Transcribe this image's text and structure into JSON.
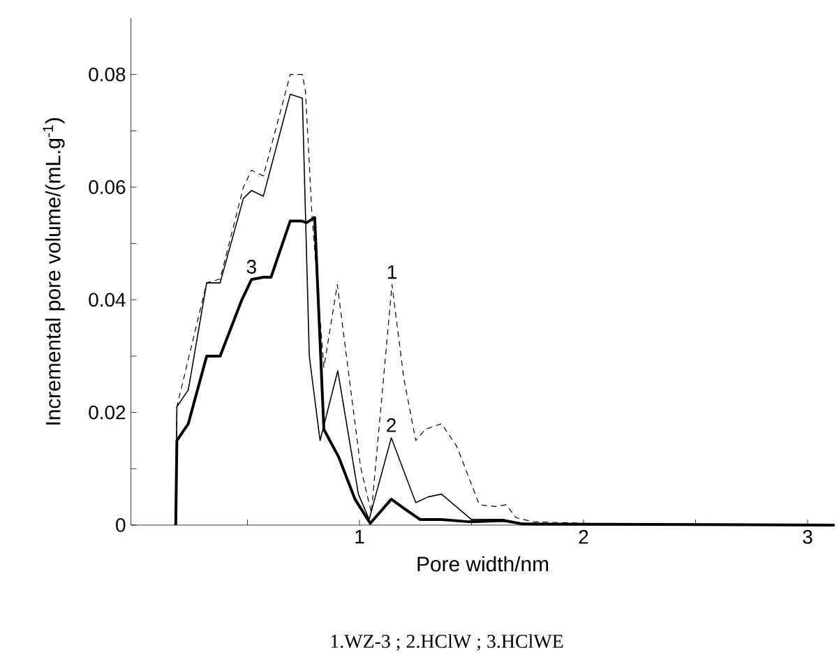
{
  "chart_data": {
    "type": "line",
    "xlabel": "Pore width/nm",
    "ylabel": "Incremental pore volume/(mL.g$^{-1}$)",
    "xlim": [
      -0.02,
      3.12
    ],
    "ylim": [
      0,
      0.09
    ],
    "xticks": [
      {
        "value": 0.5,
        "label": null
      },
      1,
      {
        "value": 1.5,
        "label": null
      },
      2,
      {
        "value": 2.5,
        "label": null
      },
      3
    ],
    "yticks": [
      0,
      {
        "value": 0.01,
        "label": null
      },
      0.02,
      {
        "value": 0.03,
        "label": null
      },
      0.04,
      {
        "value": 0.05,
        "label": null
      },
      0.06,
      {
        "value": 0.07,
        "label": null
      },
      0.08
    ],
    "grid": false,
    "marker": "none",
    "series": [
      {
        "color": "#000000",
        "line_style": "dashed",
        "x": [
          0.18,
          0.185,
          0.318,
          0.378,
          0.482,
          0.518,
          0.571,
          0.691,
          0.745,
          0.759,
          0.788,
          0.841,
          0.901,
          1.005,
          1.053,
          1.145,
          1.198,
          1.251,
          1.294,
          1.366,
          1.434,
          1.535,
          1.607,
          1.655,
          1.699,
          1.776,
          2.017,
          3.12
        ],
        "values": [
          0,
          0.021,
          0.043,
          0.0437,
          0.06,
          0.063,
          0.062,
          0.08,
          0.08,
          0.077,
          0.055,
          0.028,
          0.0427,
          0.0103,
          0.0022,
          0.0427,
          0.026,
          0.015,
          0.017,
          0.018,
          0.014,
          0.0036,
          0.0033,
          0.0036,
          0.0013,
          0.0006,
          0.0003,
          0
        ]
      },
      {
        "color": "#000000",
        "line_style": "solid",
        "x": [
          0.18,
          0.185,
          0.236,
          0.318,
          0.378,
          0.482,
          0.518,
          0.571,
          0.691,
          0.745,
          0.776,
          0.824,
          0.903,
          0.995,
          1.043,
          1.142,
          1.251,
          1.306,
          1.366,
          1.499,
          1.643,
          1.728,
          3.12
        ],
        "values": [
          0,
          0.021,
          0.024,
          0.043,
          0.043,
          0.058,
          0.0594,
          0.0584,
          0.0765,
          0.0758,
          0.03,
          0.015,
          0.0274,
          0.0055,
          0.001,
          0.0155,
          0.004,
          0.005,
          0.0055,
          0.001,
          0.001,
          0.0003,
          0
        ]
      },
      {
        "color": "#000000",
        "line_style": "solid",
        "x": [
          0.18,
          0.185,
          0.236,
          0.318,
          0.378,
          0.475,
          0.518,
          0.571,
          0.605,
          0.691,
          0.74,
          0.764,
          0.8,
          0.841,
          0.908,
          0.98,
          1.048,
          1.142,
          1.198,
          1.27,
          1.366,
          1.487,
          1.643,
          1.728,
          3.12
        ],
        "values": [
          0,
          0.015,
          0.018,
          0.03,
          0.03,
          0.04,
          0.0436,
          0.044,
          0.044,
          0.054,
          0.054,
          0.0537,
          0.0546,
          0.017,
          0.012,
          0.0046,
          0.0003,
          0.0046,
          0.003,
          0.001,
          0.001,
          0.0006,
          0.0008,
          0.0002,
          0
        ]
      }
    ],
    "annotations": [
      {
        "text": "1",
        "x": 1.145,
        "y": 0.0427
      },
      {
        "text": "2",
        "x": 1.142,
        "y": 0.0155
      },
      {
        "text": "3",
        "x": 0.518,
        "y": 0.0436
      },
      "1.WZ-3 ; 2.HClW ; 3.HClWE"
    ]
  }
}
